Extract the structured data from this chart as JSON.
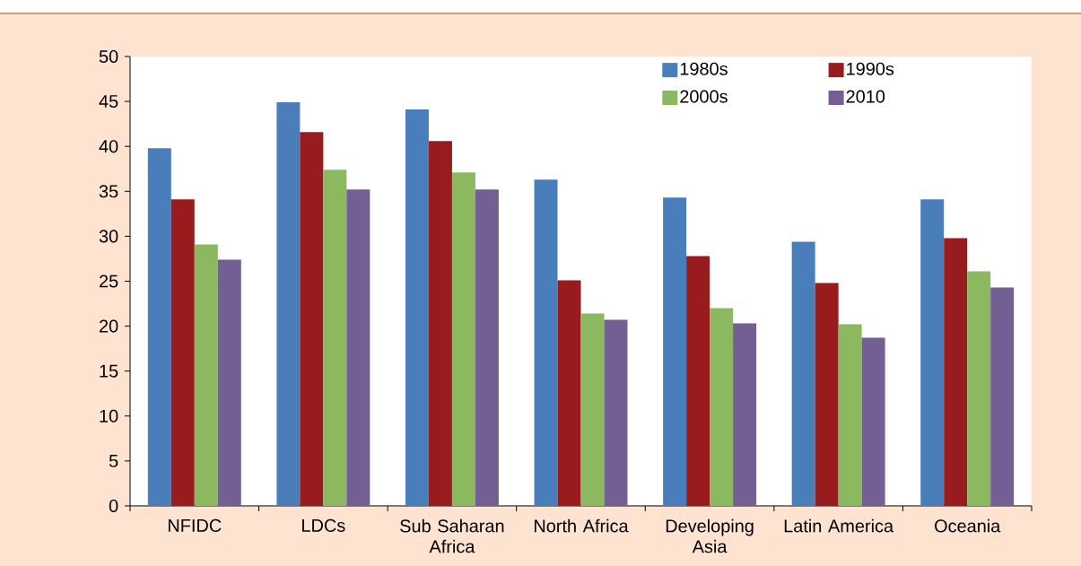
{
  "chart_data": {
    "type": "bar",
    "categories": [
      "NFIDC",
      "LDCs",
      "Sub Saharan Africa",
      "North Africa",
      "Developing Asia",
      "Latin America",
      "Oceania"
    ],
    "series": [
      {
        "name": "1980s",
        "color": "#4a7ebb",
        "values": [
          39.8,
          44.9,
          44.1,
          36.3,
          34.3,
          29.4,
          34.1
        ]
      },
      {
        "name": "1990s",
        "color": "#981b1e",
        "values": [
          34.1,
          41.6,
          40.6,
          25.1,
          27.8,
          24.8,
          29.8
        ]
      },
      {
        "name": "2000s",
        "color": "#8cb860",
        "values": [
          29.1,
          37.4,
          37.1,
          21.4,
          22.0,
          20.2,
          26.1
        ]
      },
      {
        "name": "2010",
        "color": "#735f94",
        "values": [
          27.4,
          35.2,
          35.2,
          20.7,
          20.3,
          18.7,
          24.3
        ]
      }
    ],
    "ylim": [
      0,
      50
    ],
    "yticks": [
      0,
      5,
      10,
      15,
      20,
      25,
      30,
      35,
      40,
      45,
      50
    ],
    "legend": "top"
  }
}
